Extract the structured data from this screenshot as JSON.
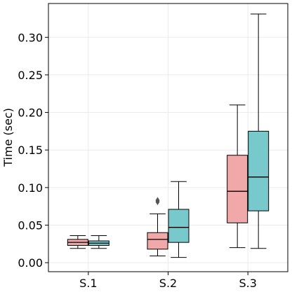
{
  "chart_data": {
    "type": "box",
    "title": "",
    "xlabel": "",
    "ylabel": "Time (sec)",
    "ylim": [
      -0.012,
      0.345
    ],
    "yticks": [
      0.0,
      0.05,
      0.1,
      0.15,
      0.2,
      0.25,
      0.3
    ],
    "ytick_labels": [
      "0.00",
      "0.05",
      "0.10",
      "0.15",
      "0.20",
      "0.25",
      "0.30"
    ],
    "categories": [
      "S.1",
      "S.2",
      "S.3"
    ],
    "grid": true,
    "legend": "none",
    "series": [
      {
        "color": "#f0a8a8",
        "boxes": [
          {
            "category": "S.1",
            "whislo": 0.019,
            "q1": 0.023,
            "med": 0.027,
            "q3": 0.031,
            "whishi": 0.036,
            "fliers": []
          },
          {
            "category": "S.2",
            "whislo": 0.009,
            "q1": 0.018,
            "med": 0.031,
            "q3": 0.04,
            "whishi": 0.065,
            "fliers": [
              0.081,
              0.083
            ]
          },
          {
            "category": "S.3",
            "whislo": 0.02,
            "q1": 0.053,
            "med": 0.095,
            "q3": 0.143,
            "whishi": 0.21,
            "fliers": []
          }
        ]
      },
      {
        "color": "#77c9cc",
        "boxes": [
          {
            "category": "S.1",
            "whislo": 0.019,
            "q1": 0.023,
            "med": 0.026,
            "q3": 0.029,
            "whishi": 0.036,
            "fliers": []
          },
          {
            "category": "S.2",
            "whislo": 0.007,
            "q1": 0.027,
            "med": 0.047,
            "q3": 0.071,
            "whishi": 0.108,
            "fliers": []
          },
          {
            "category": "S.3",
            "whislo": 0.019,
            "q1": 0.069,
            "med": 0.114,
            "q3": 0.175,
            "whishi": 0.331,
            "fliers": []
          }
        ]
      }
    ]
  }
}
